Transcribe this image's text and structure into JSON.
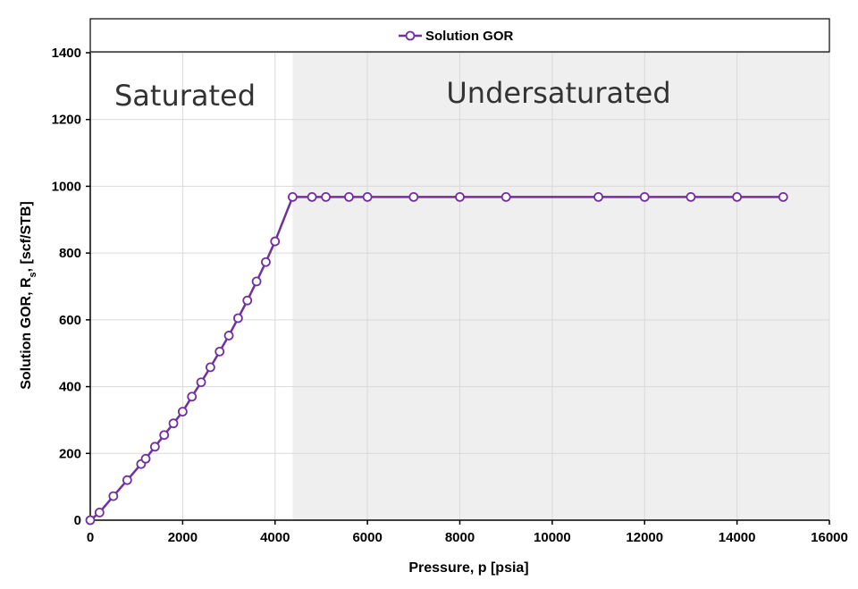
{
  "chart_data": {
    "type": "line",
    "xlabel": "Pressure, p [psia]",
    "ylabel_parts": [
      "Solution GOR, R",
      "s",
      ", [scf/STB]"
    ],
    "xlim": [
      0,
      16000
    ],
    "ylim": [
      0,
      1400
    ],
    "xticks": [
      0,
      2000,
      4000,
      6000,
      8000,
      10000,
      12000,
      14000,
      16000
    ],
    "yticks": [
      0,
      200,
      400,
      600,
      800,
      1000,
      1200,
      1400
    ],
    "grid": true,
    "legend_position": "top",
    "regions": [
      {
        "label": "Saturated",
        "x_start": 0,
        "x_end": 4380,
        "shaded": false
      },
      {
        "label": "Undersaturated",
        "x_start": 4380,
        "x_end": 16000,
        "shaded": true
      }
    ],
    "series": [
      {
        "name": "Solution GOR",
        "color": "#7030A0",
        "marker": "open-circle",
        "x": [
          0,
          200,
          500,
          800,
          1100,
          1200,
          1400,
          1600,
          1800,
          2000,
          2200,
          2400,
          2600,
          2800,
          3000,
          3200,
          3400,
          3600,
          3800,
          4000,
          4380,
          4800,
          5100,
          5600,
          6000,
          7000,
          8000,
          9000,
          11000,
          12000,
          13000,
          14000,
          15000
        ],
        "y": [
          0,
          23,
          72,
          120,
          168,
          184,
          220,
          255,
          290,
          325,
          370,
          413,
          458,
          505,
          553,
          605,
          658,
          715,
          773,
          835,
          968,
          968,
          968,
          968,
          968,
          968,
          968,
          968,
          968,
          968,
          968,
          968,
          968
        ]
      }
    ]
  },
  "colors": {
    "line": "#7030A0",
    "shade": "#efefef",
    "grid": "#d9d9d9",
    "axis": "#000000"
  }
}
